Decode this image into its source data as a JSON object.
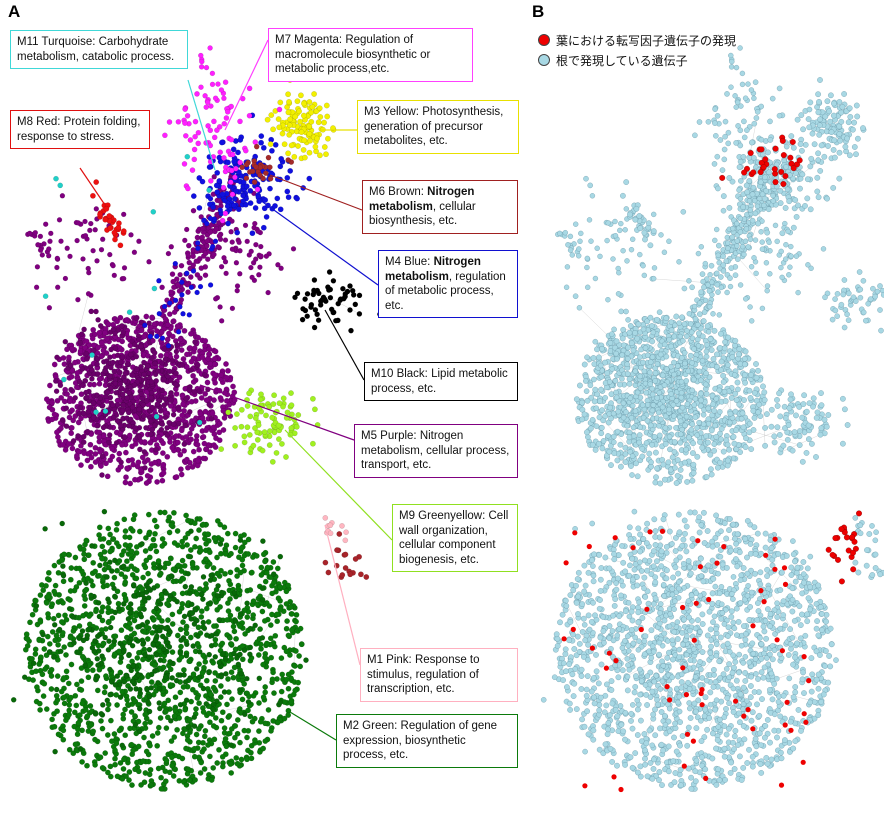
{
  "panels": {
    "a": "A",
    "b": "B"
  },
  "colors": {
    "purple": "#800080",
    "green": "#0b7a0b",
    "blue": "#1010e0",
    "yellow": "#f2f000",
    "red": "#ee1010",
    "turquoise": "#20d0c8",
    "magenta": "#ff20ff",
    "brown": "#a52a2a",
    "black": "#000000",
    "greenyellow": "#a0f020",
    "pink": "#ffb6c1",
    "lightblue": "#a8d8e4",
    "expressed_red": "#ee0000",
    "edge": "#9a9a9a"
  },
  "modules": [
    {
      "id": "M11",
      "name": "M11 Turquoise:",
      "desc": "Carbohydrate metabolism, catabolic process.",
      "color": "#40d8d8"
    },
    {
      "id": "M7",
      "name": "M7 Magenta:",
      "desc": "Regulation of macromolecule biosynthetic or metabolic process,etc.",
      "color": "#ff40ff"
    },
    {
      "id": "M8",
      "name": "M8 Red:",
      "desc": "Protein folding, response to stress.",
      "color": "#e01010"
    },
    {
      "id": "M3",
      "name": "M3 Yellow:",
      "desc": "Photosynthesis, generation of precursor metabolites, etc.",
      "color": "#e8e000"
    },
    {
      "id": "M6",
      "name": "M6 Brown:",
      "bold": "Nitrogen metabolism",
      "desc": ", cellular biosynthesis, etc.",
      "color": "#a02020"
    },
    {
      "id": "M4",
      "name": "M4 Blue:",
      "bold": "Nitrogen metabolism",
      "desc": ", regulation of metabolic process, etc.",
      "color": "#1010d0"
    },
    {
      "id": "M10",
      "name": "M10 Black:",
      "desc": "Lipid metabolic process, etc.",
      "color": "#000000"
    },
    {
      "id": "M5",
      "name": "M5 Purple:",
      "desc": "Nitrogen metabolism, cellular process, transport, etc.",
      "color": "#800080"
    },
    {
      "id": "M9",
      "name": "M9 Greenyellow:",
      "desc": "Cell wall organization, cellular component biogenesis, etc.",
      "color": "#90e020"
    },
    {
      "id": "M1",
      "name": "M1 Pink:",
      "desc": "Response to stimulus, regulation of transcription, etc.",
      "color": "#ffb0c0"
    },
    {
      "id": "M2",
      "name": "M2 Green:",
      "desc": "Regulation of gene expression, biosynthetic process, etc.",
      "color": "#0b7a0b"
    }
  ],
  "legend": [
    {
      "label": "葉における転写因子遺伝子の発現",
      "color": "#ee0000"
    },
    {
      "label": "根で発現している遺伝子",
      "color": "#a8d8e4"
    }
  ]
}
